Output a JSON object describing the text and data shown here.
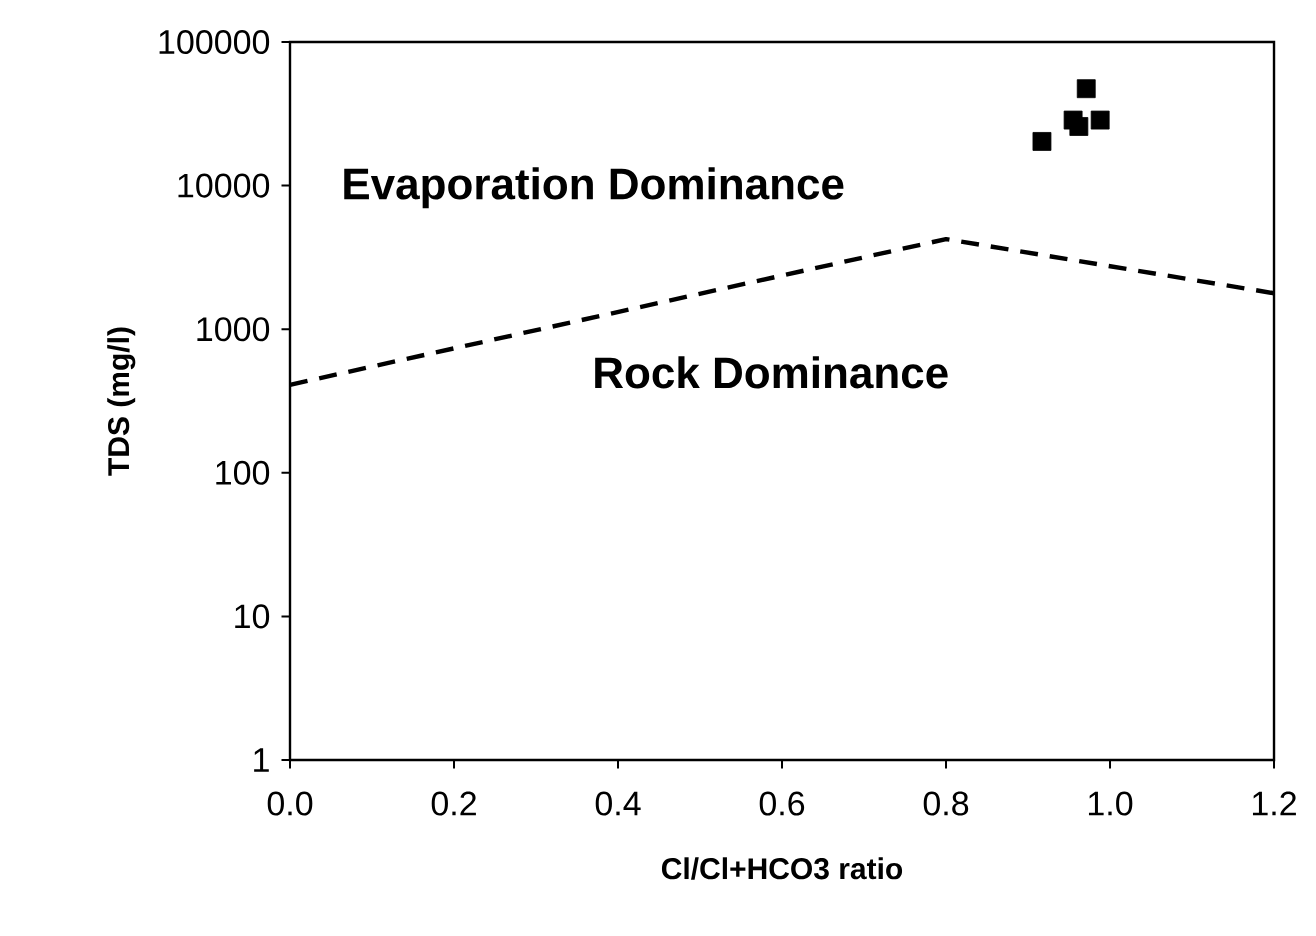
{
  "chart_data": {
    "type": "scatter",
    "xlabel": "Cl/Cl+HCO3 ratio",
    "ylabel": "TDS (mg/l)",
    "log": "y",
    "xlim": [
      0,
      1.2
    ],
    "ylim": [
      1,
      100000
    ],
    "xticks": [
      {
        "value": 0,
        "label": "0.0"
      },
      {
        "value": 0.2,
        "label": "0.2"
      },
      {
        "value": 0.4,
        "label": "0.4"
      },
      {
        "value": 0.6,
        "label": "0.6"
      },
      {
        "value": 0.8,
        "label": "0.8"
      },
      {
        "value": 1.0,
        "label": "1.0"
      },
      {
        "value": 1.2,
        "label": "1.2"
      }
    ],
    "yticks": [
      1,
      10,
      100,
      1000,
      10000,
      100000
    ],
    "grid": false,
    "annotations": [
      "Evaporation Dominance",
      "Rock Dominance"
    ],
    "series": [
      {
        "marker": "square",
        "color": "#000000",
        "x": [
          0.917,
          0.971,
          0.955,
          0.962,
          0.988
        ],
        "values": [
          20300,
          47300,
          28600,
          25800,
          28600
        ]
      },
      {
        "type": "line",
        "line_style": "dashed",
        "marker": "none",
        "color": "#000000",
        "x": [
          0,
          0.8,
          1.2
        ],
        "values": [
          410,
          4240,
          1780
        ]
      }
    ]
  }
}
